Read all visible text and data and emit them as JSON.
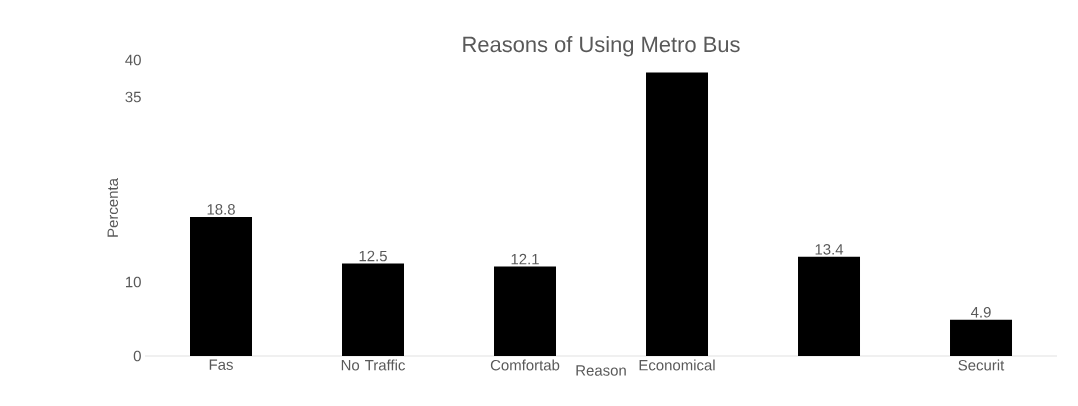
{
  "chart_data": {
    "type": "bar",
    "title": "Reasons of Using Metro Bus",
    "xlabel": "Reason",
    "ylabel": "Percenta",
    "categories": [
      "Fas",
      "No Traffic",
      "Comfortab",
      "Economical",
      null,
      "Securit"
    ],
    "values": [
      18.8,
      12.5,
      12.1,
      38.3,
      13.4,
      4.9
    ],
    "value_labels": [
      "18.8",
      "12.5",
      "12.1",
      null,
      "13.4",
      "4.9"
    ],
    "color": "#000000",
    "ylim": [
      0,
      40
    ],
    "yticks": [
      0,
      10,
      35,
      40
    ],
    "grid": false
  }
}
